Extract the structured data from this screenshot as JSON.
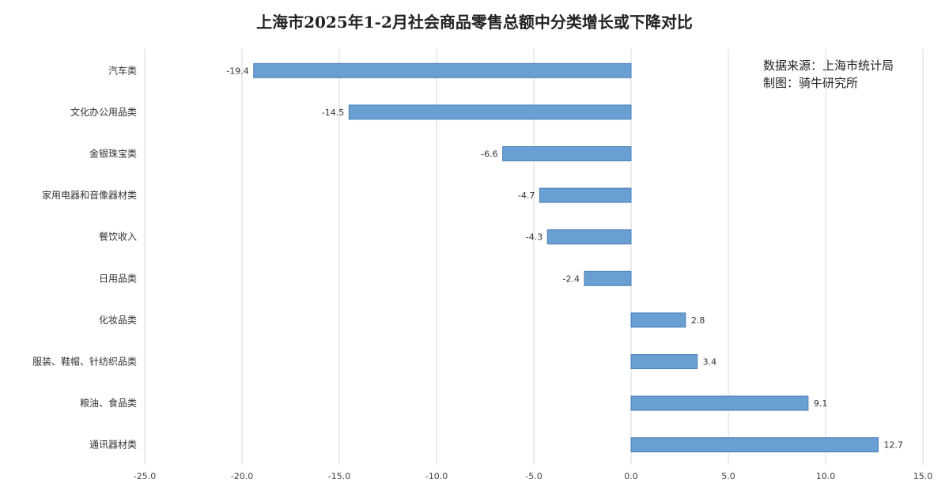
{
  "chart_data": {
    "type": "bar",
    "orientation": "horizontal",
    "title": "上海市2025年1-2月社会商品零售总额中分类增长或下降对比",
    "categories": [
      "汽车类",
      "文化办公用品类",
      "金银珠宝类",
      "家用电器和音像器材类",
      "餐饮收入",
      "日用品类",
      "化妆品类",
      "服装、鞋帽、针纺织品类",
      "粮油、食品类",
      "通讯器材类"
    ],
    "values": [
      -19.4,
      -14.5,
      -6.6,
      -4.7,
      -4.3,
      -2.4,
      2.8,
      3.4,
      9.1,
      12.7
    ],
    "data_labels": [
      "-19.4",
      "-14.5",
      "-6.6",
      "-4.7",
      "-4.3",
      "-2.4",
      "2.8",
      "3.4",
      "9.1",
      "12.7"
    ],
    "xlim": [
      -25,
      15
    ],
    "x_ticks": [
      -25,
      -20,
      -15,
      -10,
      -5,
      0,
      5,
      10,
      15
    ],
    "x_tick_labels": [
      "-25.0",
      "-20.0",
      "-15.0",
      "-10.0",
      "-5.0",
      "0.0",
      "5.0",
      "10.0",
      "15.0"
    ],
    "grid": true,
    "bar_color": "#6a9fd4",
    "bar_edge_color": "#4a7fb5",
    "grid_color": "#d9d9d9"
  },
  "annotation": {
    "source": "数据来源：上海市统计局",
    "credit": "制图：骑牛研究所"
  }
}
